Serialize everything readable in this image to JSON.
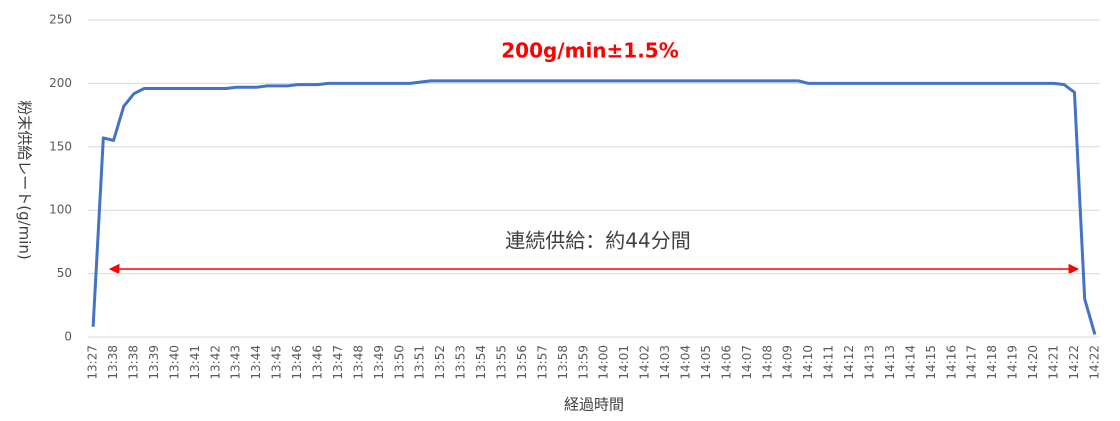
{
  "chart_data": {
    "type": "line",
    "title": "200g/min±1.5%",
    "annotation": "連続供給：約44分間",
    "y_label": "粉末供給レート(g/min)",
    "x_label": "経過時間",
    "categories": [
      "13:27",
      null,
      "13:38",
      null,
      "13:38",
      null,
      "13:39",
      null,
      "13:40",
      null,
      "13:41",
      null,
      "13:42",
      null,
      "13:43",
      null,
      "13:44",
      null,
      "13:45",
      null,
      "13:46",
      null,
      "13:46",
      null,
      "13:47",
      null,
      "13:48",
      null,
      "13:49",
      null,
      "13:50",
      null,
      "13:51",
      null,
      "13:52",
      null,
      "13:53",
      null,
      "13:54",
      null,
      "13:55",
      null,
      "13:56",
      null,
      "13:57",
      null,
      "13:58",
      null,
      "13:59",
      null,
      "14:00",
      null,
      "14:01",
      null,
      "14:02",
      null,
      "14:03",
      null,
      "14:04",
      null,
      "14:05",
      null,
      "14:06",
      null,
      "14:07",
      null,
      "14:08",
      null,
      "14:09",
      null,
      "14:10",
      null,
      "14:11",
      null,
      "14:12",
      null,
      "14:13",
      null,
      "14:13",
      null,
      "14:14",
      null,
      "14:15",
      null,
      "14:16",
      null,
      "14:17",
      null,
      "14:18",
      null,
      "14:19",
      null,
      "14:20",
      null,
      "14:21",
      null,
      "14:22",
      null,
      "14:22"
    ],
    "series": [
      {
        "name": "粉末供給レート",
        "color": "#4472c4",
        "values": [
          8,
          157,
          155,
          182,
          192,
          196,
          196,
          196,
          196,
          196,
          196,
          196,
          196,
          196,
          197,
          197,
          197,
          198,
          198,
          198,
          199,
          199,
          199,
          200,
          200,
          200,
          200,
          200,
          200,
          200,
          200,
          200,
          201,
          202,
          202,
          202,
          202,
          202,
          202,
          202,
          202,
          202,
          202,
          202,
          202,
          202,
          202,
          202,
          202,
          202,
          202,
          202,
          202,
          202,
          202,
          202,
          202,
          202,
          202,
          202,
          202,
          202,
          202,
          202,
          202,
          202,
          202,
          202,
          202,
          202,
          200,
          200,
          200,
          200,
          200,
          200,
          200,
          200,
          200,
          200,
          200,
          200,
          200,
          200,
          200,
          200,
          200,
          200,
          200,
          200,
          200,
          200,
          200,
          200,
          200,
          199,
          193,
          30,
          2
        ]
      }
    ],
    "ylim": [
      0,
      250
    ],
    "yticks": [
      0,
      50,
      100,
      150,
      200,
      250
    ],
    "grid": true
  }
}
